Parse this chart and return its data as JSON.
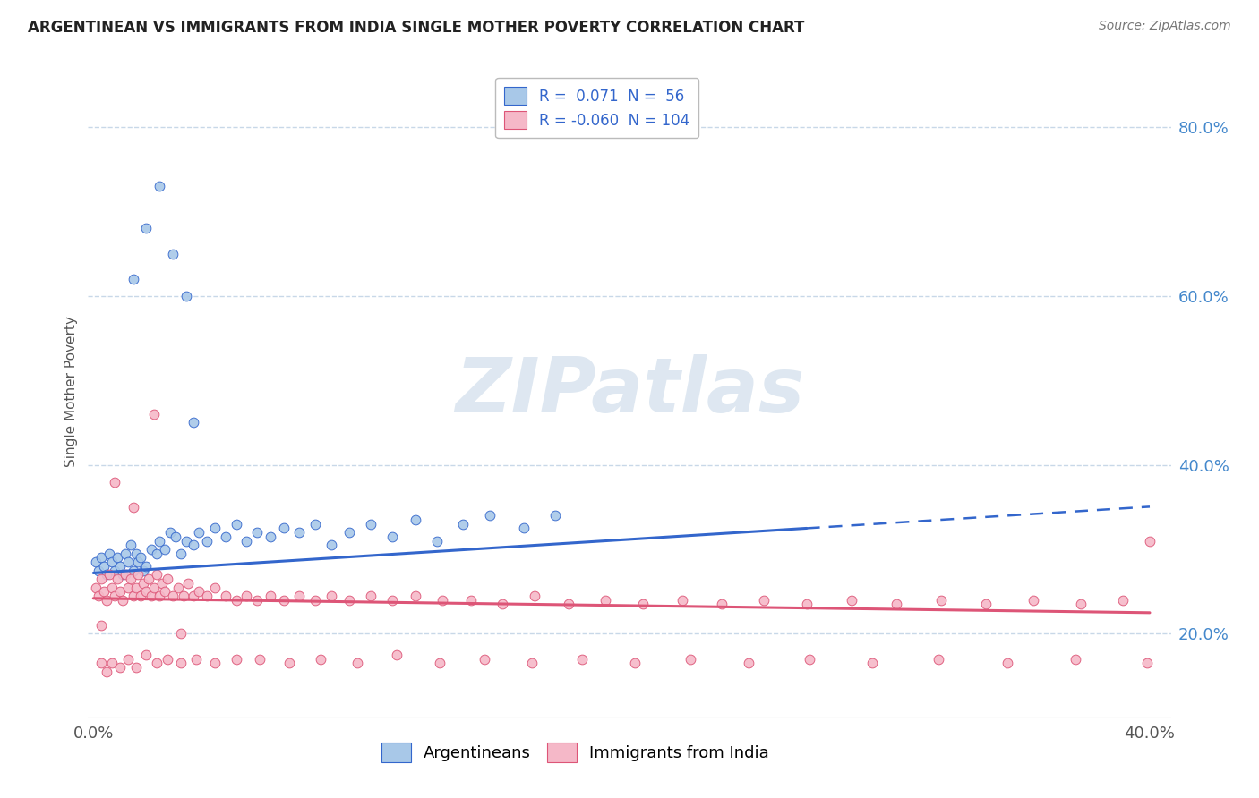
{
  "title": "ARGENTINEAN VS IMMIGRANTS FROM INDIA SINGLE MOTHER POVERTY CORRELATION CHART",
  "source": "Source: ZipAtlas.com",
  "ylabel": "Single Mother Poverty",
  "legend_label1": "Argentineans",
  "legend_label2": "Immigrants from India",
  "R1": 0.071,
  "N1": 56,
  "R2": -0.06,
  "N2": 104,
  "xlim": [
    -0.002,
    0.408
  ],
  "ylim": [
    0.1,
    0.875
  ],
  "xticks": [
    0.0,
    0.4
  ],
  "yticks_right": [
    0.2,
    0.4,
    0.6,
    0.8
  ],
  "color_blue": "#a8c8e8",
  "color_pink": "#f5b8c8",
  "trendline_blue": "#3366cc",
  "trendline_pink": "#dd5577",
  "background_color": "#ffffff",
  "grid_color": "#c8d8e8",
  "watermark": "ZIPatlas",
  "arg_x": [
    0.001,
    0.002,
    0.003,
    0.004,
    0.005,
    0.006,
    0.007,
    0.008,
    0.009,
    0.01,
    0.011,
    0.012,
    0.013,
    0.014,
    0.015,
    0.016,
    0.017,
    0.018,
    0.019,
    0.02,
    0.022,
    0.024,
    0.025,
    0.027,
    0.029,
    0.031,
    0.033,
    0.035,
    0.038,
    0.04,
    0.043,
    0.046,
    0.05,
    0.054,
    0.058,
    0.062,
    0.067,
    0.072,
    0.078,
    0.084,
    0.09,
    0.097,
    0.105,
    0.113,
    0.122,
    0.13,
    0.14,
    0.15,
    0.163,
    0.175,
    0.015,
    0.02,
    0.025,
    0.03,
    0.035,
    0.038
  ],
  "arg_y": [
    0.285,
    0.275,
    0.29,
    0.28,
    0.27,
    0.295,
    0.285,
    0.275,
    0.29,
    0.28,
    0.27,
    0.295,
    0.285,
    0.305,
    0.275,
    0.295,
    0.285,
    0.29,
    0.275,
    0.28,
    0.3,
    0.295,
    0.31,
    0.3,
    0.32,
    0.315,
    0.295,
    0.31,
    0.305,
    0.32,
    0.31,
    0.325,
    0.315,
    0.33,
    0.31,
    0.32,
    0.315,
    0.325,
    0.32,
    0.33,
    0.305,
    0.32,
    0.33,
    0.315,
    0.335,
    0.31,
    0.33,
    0.34,
    0.325,
    0.34,
    0.62,
    0.68,
    0.73,
    0.65,
    0.6,
    0.45
  ],
  "ind_x": [
    0.001,
    0.002,
    0.003,
    0.004,
    0.005,
    0.006,
    0.007,
    0.008,
    0.009,
    0.01,
    0.011,
    0.012,
    0.013,
    0.014,
    0.015,
    0.016,
    0.017,
    0.018,
    0.019,
    0.02,
    0.021,
    0.022,
    0.023,
    0.024,
    0.025,
    0.026,
    0.027,
    0.028,
    0.03,
    0.032,
    0.034,
    0.036,
    0.038,
    0.04,
    0.043,
    0.046,
    0.05,
    0.054,
    0.058,
    0.062,
    0.067,
    0.072,
    0.078,
    0.084,
    0.09,
    0.097,
    0.105,
    0.113,
    0.122,
    0.132,
    0.143,
    0.155,
    0.167,
    0.18,
    0.194,
    0.208,
    0.223,
    0.238,
    0.254,
    0.27,
    0.287,
    0.304,
    0.321,
    0.338,
    0.356,
    0.374,
    0.39,
    0.4,
    0.003,
    0.005,
    0.007,
    0.01,
    0.013,
    0.016,
    0.02,
    0.024,
    0.028,
    0.033,
    0.039,
    0.046,
    0.054,
    0.063,
    0.074,
    0.086,
    0.1,
    0.115,
    0.131,
    0.148,
    0.166,
    0.185,
    0.205,
    0.226,
    0.248,
    0.271,
    0.295,
    0.32,
    0.346,
    0.372,
    0.399,
    0.003,
    0.008,
    0.015,
    0.023,
    0.033
  ],
  "ind_y": [
    0.255,
    0.245,
    0.265,
    0.25,
    0.24,
    0.27,
    0.255,
    0.245,
    0.265,
    0.25,
    0.24,
    0.27,
    0.255,
    0.265,
    0.245,
    0.255,
    0.27,
    0.245,
    0.26,
    0.25,
    0.265,
    0.245,
    0.255,
    0.27,
    0.245,
    0.26,
    0.25,
    0.265,
    0.245,
    0.255,
    0.245,
    0.26,
    0.245,
    0.25,
    0.245,
    0.255,
    0.245,
    0.24,
    0.245,
    0.24,
    0.245,
    0.24,
    0.245,
    0.24,
    0.245,
    0.24,
    0.245,
    0.24,
    0.245,
    0.24,
    0.24,
    0.235,
    0.245,
    0.235,
    0.24,
    0.235,
    0.24,
    0.235,
    0.24,
    0.235,
    0.24,
    0.235,
    0.24,
    0.235,
    0.24,
    0.235,
    0.24,
    0.31,
    0.165,
    0.155,
    0.165,
    0.16,
    0.17,
    0.16,
    0.175,
    0.165,
    0.17,
    0.165,
    0.17,
    0.165,
    0.17,
    0.17,
    0.165,
    0.17,
    0.165,
    0.175,
    0.165,
    0.17,
    0.165,
    0.17,
    0.165,
    0.17,
    0.165,
    0.17,
    0.165,
    0.17,
    0.165,
    0.17,
    0.165,
    0.21,
    0.38,
    0.35,
    0.46,
    0.2
  ]
}
